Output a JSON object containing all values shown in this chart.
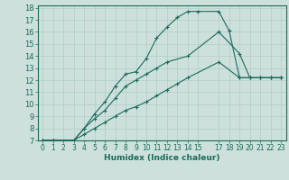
{
  "xlabel": "Humidex (Indice chaleur)",
  "bg_color": "#cde0dc",
  "line_color": "#1a6b5a",
  "grid_color": "#b0cdc8",
  "xlim": [
    -0.5,
    23.5
  ],
  "ylim": [
    7,
    18.2
  ],
  "xticks": [
    0,
    1,
    2,
    3,
    4,
    5,
    6,
    7,
    8,
    9,
    10,
    11,
    12,
    13,
    14,
    15,
    17,
    18,
    19,
    20,
    21,
    22,
    23
  ],
  "xtick_labels": [
    "0",
    "1",
    "2",
    "3",
    "4",
    "5",
    "6",
    "7",
    "8",
    "9",
    "10",
    "11",
    "12",
    "13",
    "14",
    "15",
    "17",
    "18",
    "19",
    "20",
    "21",
    "22",
    "23"
  ],
  "yticks": [
    7,
    8,
    9,
    10,
    11,
    12,
    13,
    14,
    15,
    16,
    17,
    18
  ],
  "line1_x": [
    0,
    1,
    3,
    4,
    5,
    6,
    7,
    8,
    9,
    10,
    11,
    12,
    13,
    14,
    15,
    17,
    18,
    19,
    20,
    21,
    22,
    23
  ],
  "line1_y": [
    7,
    7,
    7,
    8,
    9.2,
    10.2,
    11.5,
    12.5,
    12.7,
    13.8,
    15.5,
    16.4,
    17.2,
    17.7,
    17.7,
    17.7,
    16.1,
    12.2,
    12.2,
    12.2,
    12.2,
    12.2
  ],
  "line2_x": [
    0,
    1,
    3,
    4,
    5,
    6,
    7,
    8,
    9,
    10,
    11,
    12,
    14,
    17,
    19,
    20,
    21,
    22,
    23
  ],
  "line2_y": [
    7,
    7,
    7,
    8,
    8.8,
    9.5,
    10.5,
    11.5,
    12.0,
    12.5,
    13.0,
    13.5,
    14.0,
    16.0,
    14.2,
    12.2,
    12.2,
    12.2,
    12.2
  ],
  "line3_x": [
    0,
    1,
    3,
    4,
    5,
    6,
    7,
    8,
    9,
    10,
    11,
    12,
    13,
    14,
    17,
    19,
    20,
    21,
    22,
    23
  ],
  "line3_y": [
    7,
    7,
    7,
    7.5,
    8.0,
    8.5,
    9.0,
    9.5,
    9.8,
    10.2,
    10.7,
    11.2,
    11.7,
    12.2,
    13.5,
    12.2,
    12.2,
    12.2,
    12.2,
    12.2
  ]
}
